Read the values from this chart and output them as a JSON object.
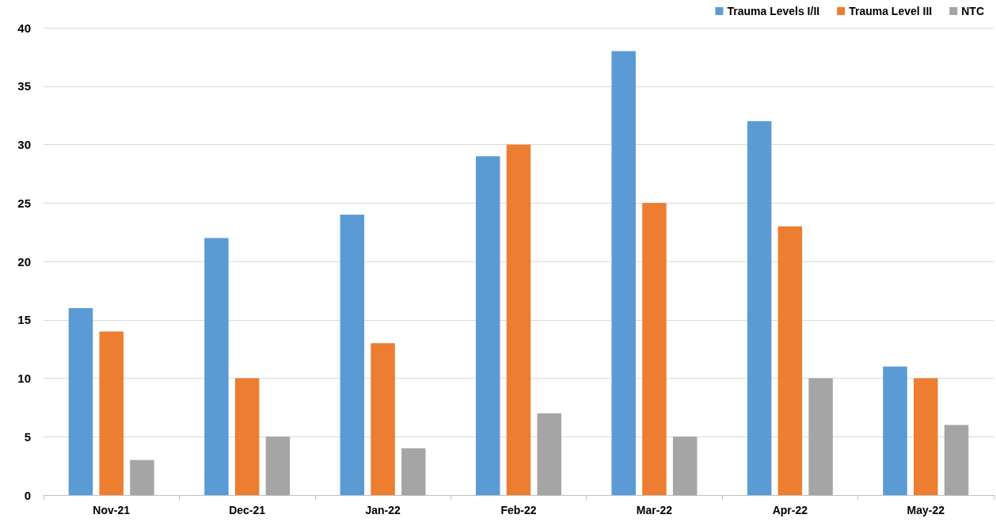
{
  "chart_data": {
    "type": "bar",
    "categories": [
      "Nov-21",
      "Dec-21",
      "Jan-22",
      "Feb-22",
      "Mar-22",
      "Apr-22",
      "May-22"
    ],
    "series": [
      {
        "name": "Trauma Levels I/II",
        "color": "#5b9bd5",
        "values": [
          16,
          22,
          24,
          29,
          38,
          32,
          11
        ]
      },
      {
        "name": "Trauma Level III",
        "color": "#ed7d31",
        "values": [
          14,
          10,
          13,
          30,
          25,
          23,
          10
        ]
      },
      {
        "name": "NTC",
        "color": "#a5a5a5",
        "values": [
          3,
          5,
          4,
          7,
          5,
          10,
          6
        ]
      }
    ],
    "ylim": [
      0,
      40
    ],
    "yticks": [
      0,
      5,
      10,
      15,
      20,
      25,
      30,
      35,
      40
    ],
    "grid": "y",
    "legend": "top right"
  }
}
